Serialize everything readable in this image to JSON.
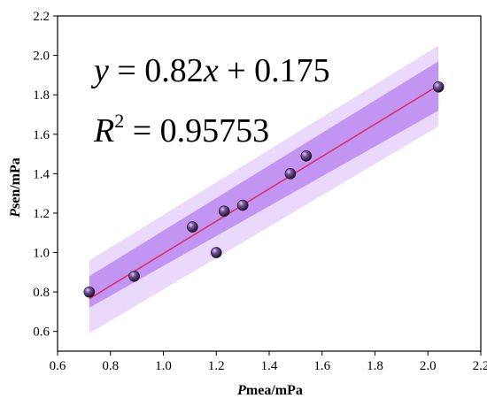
{
  "chart_data": {
    "type": "scatter",
    "xlabel_italic": "P",
    "xlabel_rest": "mea/mPa",
    "ylabel_italic": "P",
    "ylabel_rest": "sen/mPa",
    "xlim": [
      0.6,
      2.2
    ],
    "ylim": [
      0.5,
      2.2
    ],
    "x_ticks": [
      "0.6",
      "0.8",
      "1.0",
      "1.2",
      "1.4",
      "1.6",
      "1.8",
      "2.0",
      "2.2"
    ],
    "y_ticks": [
      "0.6",
      "0.8",
      "1.0",
      "1.2",
      "1.4",
      "1.6",
      "1.8",
      "2.0",
      "2.2"
    ],
    "points": [
      {
        "x": 0.72,
        "y": 0.8
      },
      {
        "x": 0.89,
        "y": 0.88
      },
      {
        "x": 1.11,
        "y": 1.13
      },
      {
        "x": 1.2,
        "y": 1.0
      },
      {
        "x": 1.23,
        "y": 1.21
      },
      {
        "x": 1.3,
        "y": 1.24
      },
      {
        "x": 1.48,
        "y": 1.4
      },
      {
        "x": 1.54,
        "y": 1.49
      },
      {
        "x": 2.04,
        "y": 1.84
      }
    ],
    "fit": {
      "slope": 0.82,
      "intercept": 0.175,
      "x_range": [
        0.72,
        2.04
      ]
    },
    "confidence_band": {
      "upper": [
        0.88,
        1.97
      ],
      "lower": [
        0.72,
        1.72
      ]
    },
    "prediction_band": {
      "upper": [
        0.96,
        2.05
      ],
      "lower": [
        0.59,
        1.64
      ]
    },
    "equation": {
      "y_symbol": "y",
      "mid": " = 0.82",
      "x_symbol": "x",
      "tail": " + 0.175",
      "r_symbol": "R",
      "r_exp": "2",
      "r_value": " = 0.95753"
    },
    "colors": {
      "fit_line": "#d6336c",
      "confidence_band": "#b67ef0",
      "prediction_band": "#ead9fb",
      "point_fill": "#5a3a78"
    }
  }
}
